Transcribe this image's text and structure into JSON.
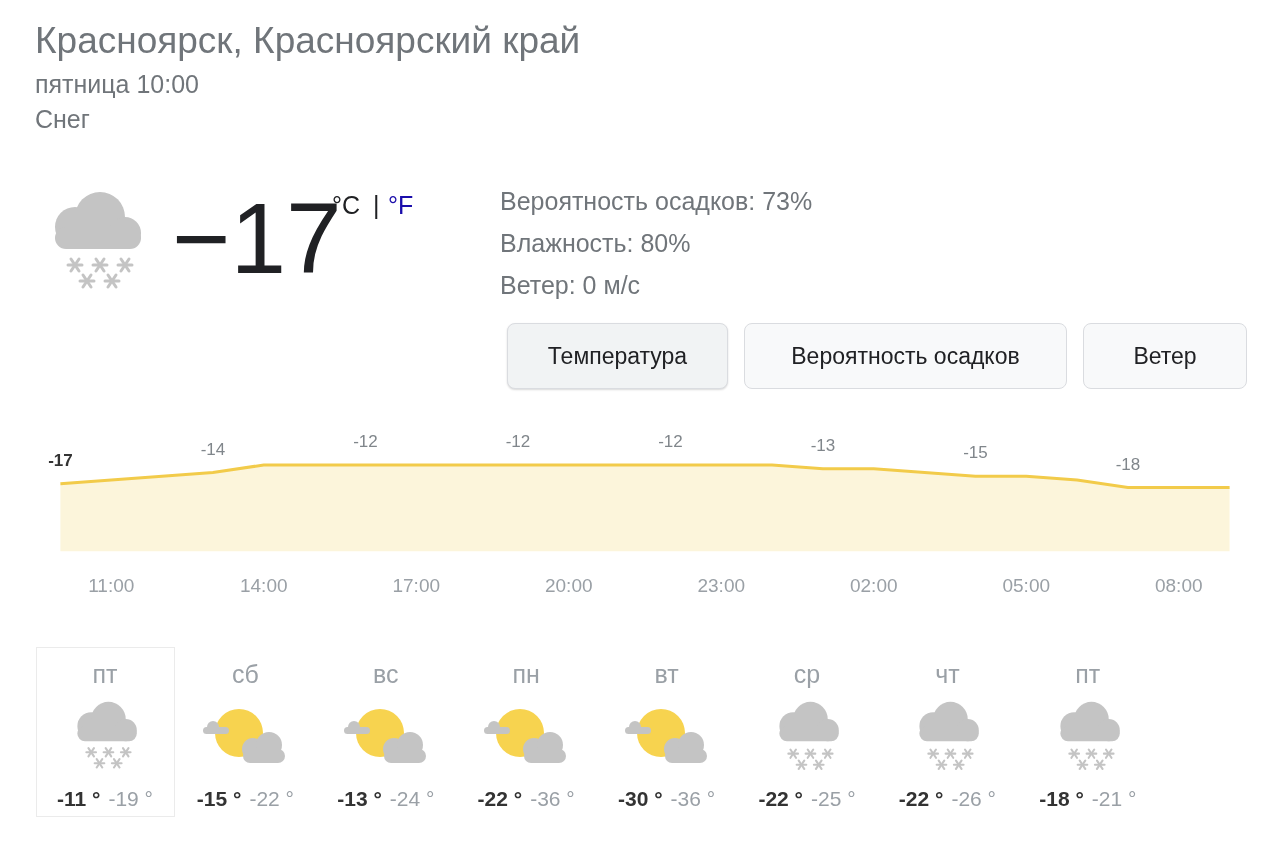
{
  "chart_data": [
    {
      "type": "area",
      "title": "Красноярск, Красноярский край",
      "subtitle": "пятница 10:00",
      "annotations": [
        "Снег",
        "−17",
        "°C",
        "|",
        "°F",
        "Вероятность осадков: 73%",
        "Влажность: 80%",
        "Ветер: 0 м/с",
        "Температура",
        "Вероятность осадков",
        "Ветер"
      ],
      "categories": [
        null,
        "11:00",
        null,
        null,
        "14:00",
        null,
        null,
        "17:00",
        null,
        null,
        "20:00",
        null,
        null,
        "23:00",
        null,
        null,
        "02:00",
        null,
        null,
        "05:00",
        null,
        null,
        "08:00",
        null
      ],
      "values": [
        -17,
        -16,
        -15,
        -14,
        -12,
        -12,
        -12,
        -12,
        -12,
        -12,
        -12,
        -12,
        -12,
        -12,
        -12,
        -13,
        -13,
        -14,
        -15,
        -15,
        -16,
        -18,
        -18,
        -18
      ],
      "value_labels": [
        "-17",
        null,
        null,
        "-14",
        null,
        null,
        "-12",
        null,
        null,
        "-12",
        null,
        null,
        "-12",
        null,
        null,
        "-13",
        null,
        null,
        "-15",
        null,
        null,
        "-18",
        null,
        null
      ],
      "color": "#f2cb4a",
      "tick_labels": "x"
    },
    {
      "type": "other",
      "categories": [
        "пт",
        "сб",
        "вс",
        "пн",
        "вт",
        "ср",
        "чт",
        "пт"
      ],
      "series": [
        {
          "color": "#333333",
          "values": [
            -11,
            -15,
            -13,
            -22,
            -30,
            -22,
            -22,
            -18
          ],
          "value_labels": [
            "-11 °",
            "-15 °",
            "-13 °",
            "-22 °",
            "-30 °",
            "-22 °",
            "-22 °",
            "-18 °"
          ]
        },
        {
          "color": "#9aa0a6",
          "values": [
            -19,
            -22,
            -24,
            -36,
            -36,
            -25,
            -26,
            -21
          ],
          "value_labels": [
            "-19 °",
            "-22 °",
            "-24 °",
            "-36 °",
            "-36 °",
            "-25 °",
            "-26 °",
            "-21 °"
          ]
        }
      ]
    }
  ]
}
